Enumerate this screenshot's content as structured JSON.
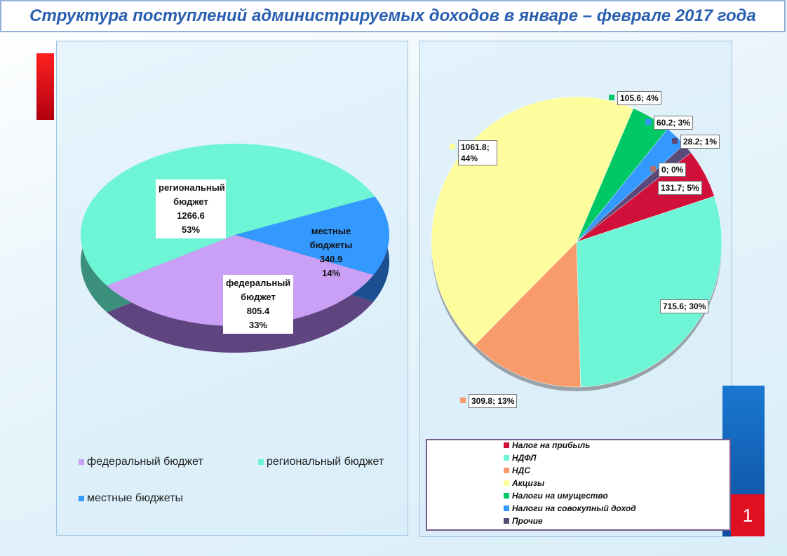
{
  "title": "Структура поступлений администрируемых доходов в январе – феврале 2017 года",
  "slide_number": "1",
  "chart_data": [
    {
      "type": "pie",
      "categories": [
        "федеральный бюджет",
        "региональный бюджет",
        "местные бюджеты"
      ],
      "values": [
        805.4,
        1266.6,
        340.9
      ],
      "value_labels": [
        "805.4\n33%",
        "1266.6\n53%",
        "340.9\n14%"
      ],
      "colors": [
        "#c9a0f5",
        "#6ef5d5",
        "#3399ff"
      ],
      "side_colors": [
        "#5e4580",
        "#3b8f7c",
        "#1c4f8f"
      ],
      "legend": "bottom"
    },
    {
      "type": "pie",
      "categories": [
        "Налог на прибыль",
        "НДФЛ",
        "НДС",
        "Акцизы",
        "Налоги на имущество",
        "Налоги на совокупный доход",
        "Прочие",
        null
      ],
      "values": [
        131.7,
        715.6,
        309.8,
        1061.8,
        105.6,
        60.2,
        28.2,
        0
      ],
      "value_labels": [
        "131.7; 5%",
        "715.6; 30%",
        "309.8; 13%",
        "1061.8; 44%",
        "105.6; 4%",
        "60.2; 3%",
        "28.2; 1%",
        "0; 0%"
      ],
      "colors": [
        "#d0103a",
        "#6ef5d5",
        "#f79b6b",
        "#fdfd9e",
        "#00c864",
        "#3399ff",
        "#5a4a7a",
        "#b07070"
      ],
      "legend": "bottom"
    }
  ]
}
